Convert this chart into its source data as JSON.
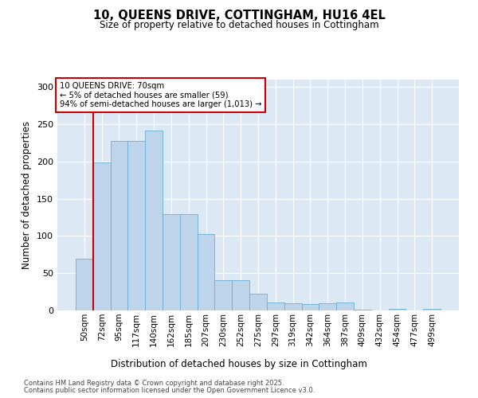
{
  "title_line1": "10, QUEENS DRIVE, COTTINGHAM, HU16 4EL",
  "title_line2": "Size of property relative to detached houses in Cottingham",
  "xlabel": "Distribution of detached houses by size in Cottingham",
  "ylabel": "Number of detached properties",
  "categories": [
    "50sqm",
    "72sqm",
    "95sqm",
    "117sqm",
    "140sqm",
    "162sqm",
    "185sqm",
    "207sqm",
    "230sqm",
    "252sqm",
    "275sqm",
    "297sqm",
    "319sqm",
    "342sqm",
    "364sqm",
    "387sqm",
    "409sqm",
    "432sqm",
    "454sqm",
    "477sqm",
    "499sqm"
  ],
  "values": [
    70,
    199,
    228,
    228,
    242,
    129,
    129,
    103,
    41,
    41,
    22,
    11,
    10,
    9,
    10,
    11,
    1,
    0,
    2,
    0,
    2
  ],
  "bar_color": "#bdd4ea",
  "bar_edge_color": "#6aaed6",
  "background_color": "#dce9f5",
  "vline_color": "#cc0000",
  "annotation_title": "10 QUEENS DRIVE: 70sqm",
  "annotation_line2": "← 5% of detached houses are smaller (59)",
  "annotation_line3": "94% of semi-detached houses are larger (1,013) →",
  "annotation_box_edgecolor": "#cc0000",
  "footer_line1": "Contains HM Land Registry data © Crown copyright and database right 2025.",
  "footer_line2": "Contains public sector information licensed under the Open Government Licence v3.0.",
  "ylim": [
    0,
    310
  ],
  "yticks": [
    0,
    50,
    100,
    150,
    200,
    250,
    300
  ]
}
